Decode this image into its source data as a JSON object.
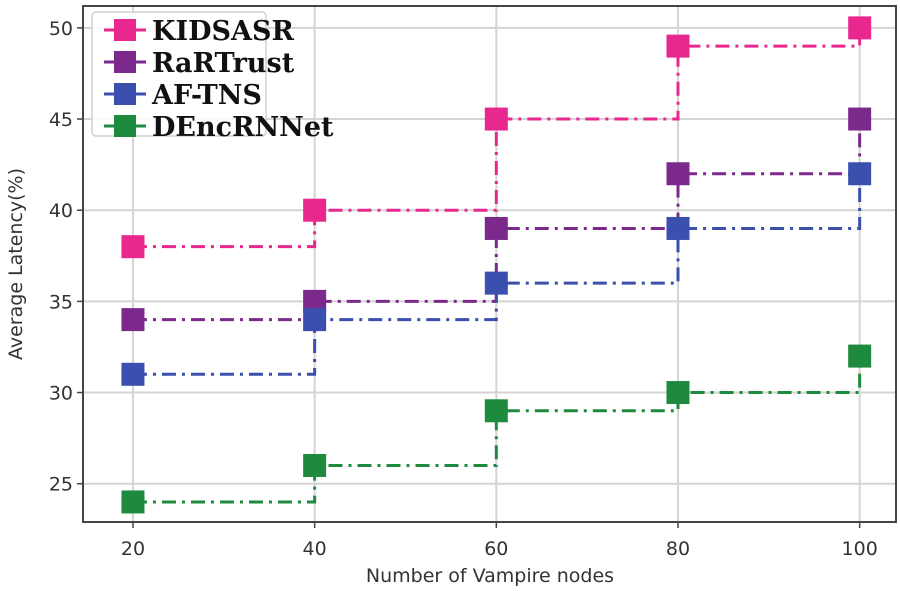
{
  "chart_data": {
    "type": "line",
    "drawstyle": "steps-post",
    "title": "",
    "xlabel": "Number of Vampire nodes",
    "ylabel": "Average Latency(%)",
    "x": [
      20,
      40,
      60,
      80,
      100
    ],
    "xticks": [
      20,
      40,
      60,
      80,
      100
    ],
    "yticks": [
      25,
      30,
      35,
      40,
      45,
      50
    ],
    "xlim": [
      14.5,
      104
    ],
    "ylim": [
      22.9,
      51.2
    ],
    "grid": true,
    "legend_position": "upper left",
    "series": [
      {
        "name": "KIDSASR",
        "color": "#e8288f",
        "marker": "square",
        "linestyle": "dashdot",
        "values": [
          38,
          40,
          45,
          49,
          50
        ]
      },
      {
        "name": "RaRTrust",
        "color": "#7b2a8c",
        "marker": "square",
        "linestyle": "dashdot",
        "values": [
          34,
          35,
          39,
          42,
          45
        ]
      },
      {
        "name": "AF-TNS",
        "color": "#3a4fae",
        "marker": "square",
        "linestyle": "dashdot",
        "values": [
          31,
          34,
          36,
          39,
          42
        ]
      },
      {
        "name": "DEncRNNet",
        "color": "#1e8a3e",
        "marker": "square",
        "linestyle": "dashdot",
        "values": [
          24,
          26,
          29,
          30,
          32
        ]
      }
    ]
  }
}
